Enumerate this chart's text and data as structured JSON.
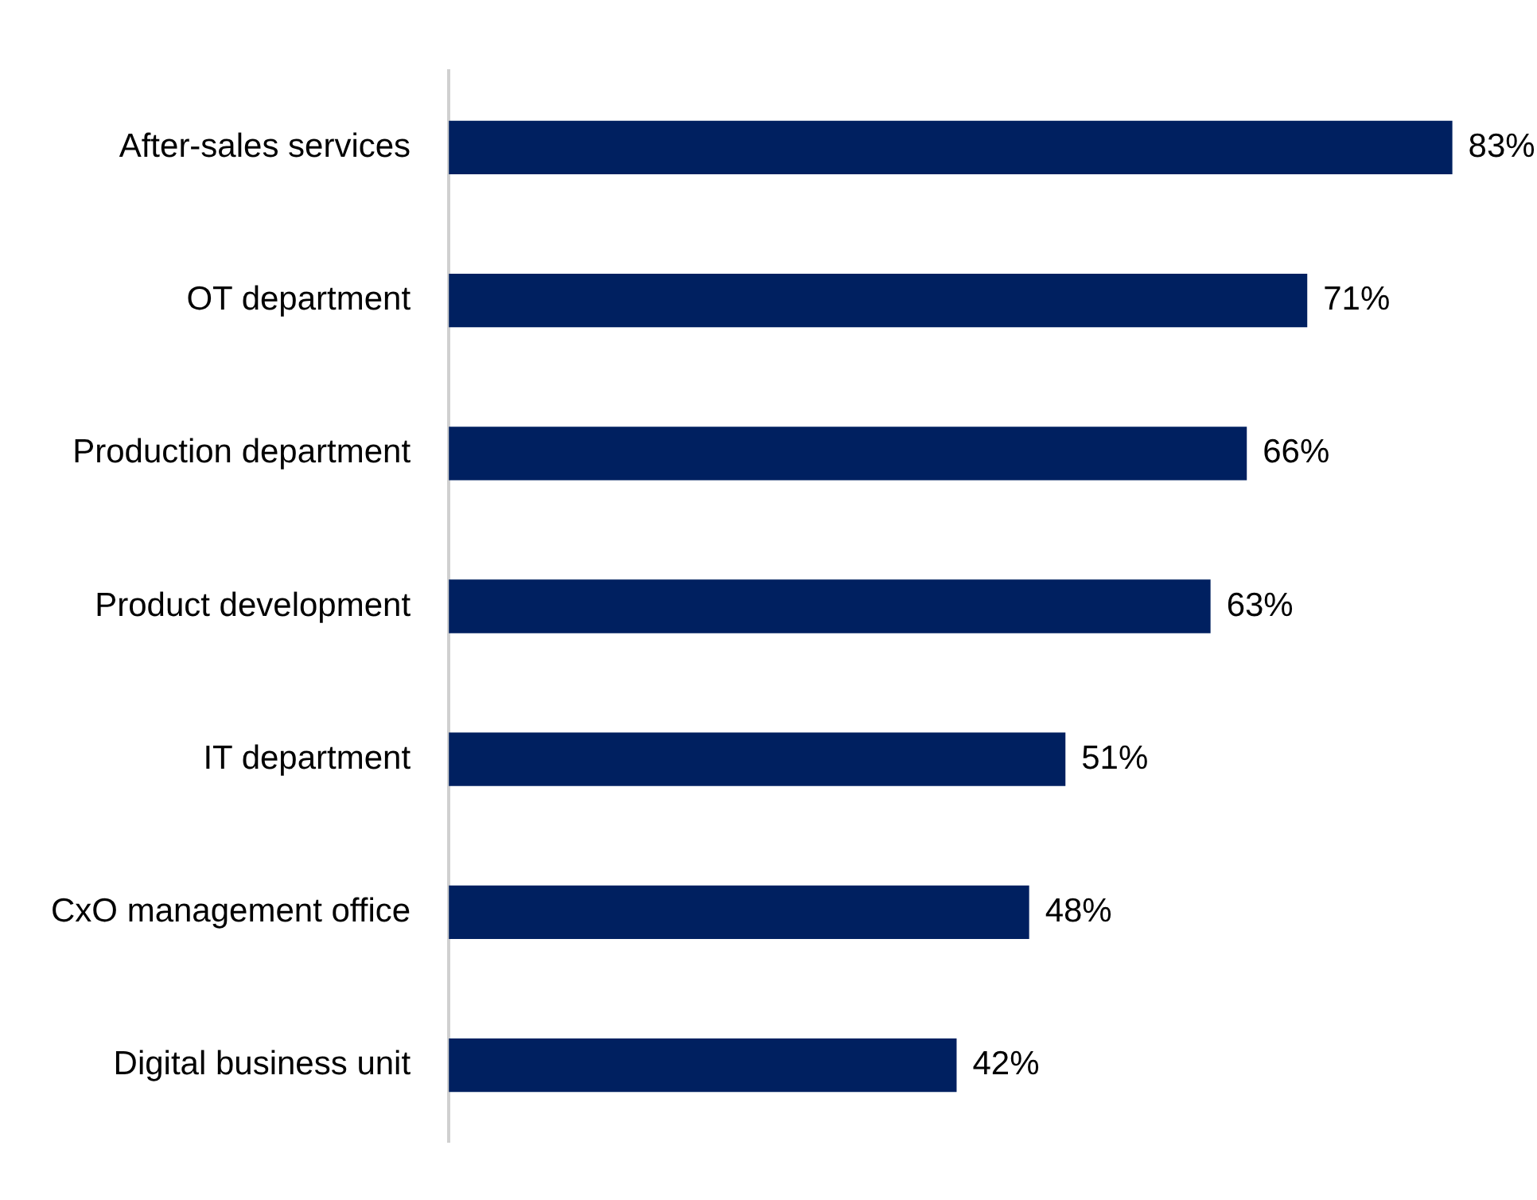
{
  "chart_data": {
    "type": "bar",
    "orientation": "horizontal",
    "categories": [
      "After-sales services",
      "OT department",
      "Production department",
      "Product development",
      "IT department",
      "CxO management office",
      "Digital business unit"
    ],
    "values": [
      83,
      71,
      66,
      63,
      51,
      48,
      42
    ],
    "value_labels": [
      "83%",
      "71%",
      "66%",
      "63%",
      "51%",
      "48%",
      "42%"
    ],
    "color": "#002060",
    "tick_labels": "y"
  }
}
